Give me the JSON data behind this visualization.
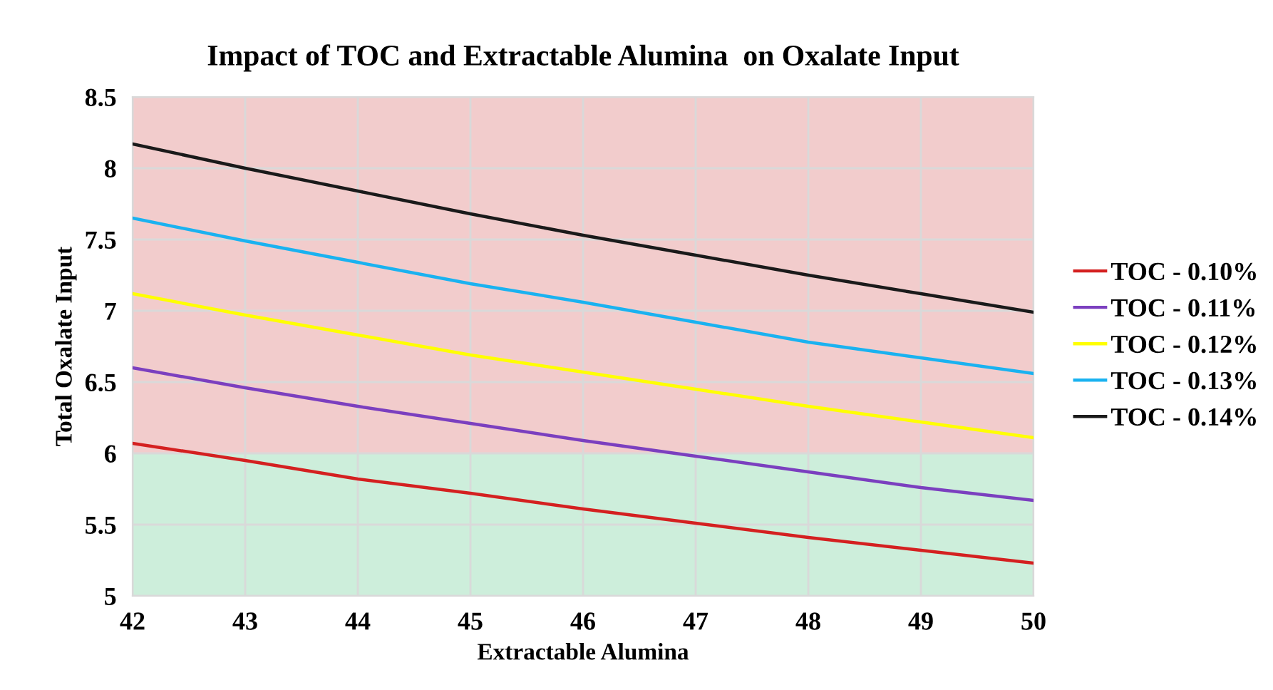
{
  "chart_data": {
    "type": "line",
    "title": "Impact of TOC and Extractable Alumina  on Oxalate Input",
    "xlabel": "Extractable Alumina",
    "ylabel": "Total Oxalate Input",
    "x": [
      42,
      43,
      44,
      45,
      46,
      47,
      48,
      49,
      50
    ],
    "series": [
      {
        "name": "TOC - 0.10%",
        "color": "#d42020",
        "values": [
          6.07,
          5.95,
          5.82,
          5.72,
          5.61,
          5.51,
          5.41,
          5.32,
          5.23
        ]
      },
      {
        "name": "TOC - 0.11%",
        "color": "#7b3fbf",
        "values": [
          6.6,
          6.46,
          6.33,
          6.21,
          6.09,
          5.98,
          5.87,
          5.76,
          5.67
        ]
      },
      {
        "name": "TOC - 0.12%",
        "color": "#ffff00",
        "values": [
          7.12,
          6.97,
          6.83,
          6.69,
          6.57,
          6.45,
          6.33,
          6.22,
          6.11
        ]
      },
      {
        "name": "TOC - 0.13%",
        "color": "#1ab2f0",
        "values": [
          7.65,
          7.49,
          7.34,
          7.19,
          7.06,
          6.92,
          6.78,
          6.67,
          6.56
        ]
      },
      {
        "name": "TOC - 0.14%",
        "color": "#1a1a1a",
        "values": [
          8.17,
          8.0,
          7.84,
          7.68,
          7.53,
          7.39,
          7.25,
          7.12,
          6.99
        ]
      }
    ],
    "bands": [
      {
        "axis": "y",
        "from": 5,
        "to": 6,
        "color": "#cdeedb"
      },
      {
        "axis": "y",
        "from": 6,
        "to": 8.5,
        "color": "#f2cccc"
      }
    ],
    "xlim": [
      42,
      50
    ],
    "xticks": [
      42,
      43,
      44,
      45,
      46,
      47,
      48,
      49,
      50
    ],
    "ylim": [
      5,
      8.5
    ],
    "yticks": [
      5,
      {
        "value": 5.5,
        "label": "5.5"
      },
      6,
      {
        "value": 6.5,
        "label": "6.5"
      },
      7,
      {
        "value": 7.5,
        "label": "7.5"
      },
      8,
      {
        "value": 8.5,
        "label": "8.5"
      }
    ],
    "grid": true,
    "legend": "right",
    "marker": "none",
    "line_style": "solid"
  }
}
